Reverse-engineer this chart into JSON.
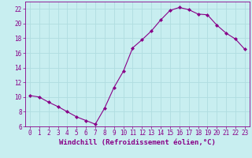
{
  "x": [
    0,
    1,
    2,
    3,
    4,
    5,
    6,
    7,
    8,
    9,
    10,
    11,
    12,
    13,
    14,
    15,
    16,
    17,
    18,
    19,
    20,
    21,
    22,
    23
  ],
  "y": [
    10.2,
    10.0,
    9.3,
    8.7,
    8.0,
    7.3,
    6.8,
    6.3,
    8.5,
    11.3,
    13.5,
    16.7,
    17.8,
    19.0,
    20.5,
    21.8,
    22.2,
    21.9,
    21.3,
    21.2,
    19.8,
    18.7,
    17.9,
    16.5
  ],
  "line_color": "#880088",
  "marker": "D",
  "marker_size": 2.0,
  "bg_color": "#c8eef0",
  "grid_color": "#b0dde0",
  "ylim": [
    6,
    23
  ],
  "xlim": [
    -0.5,
    23.5
  ],
  "yticks": [
    6,
    8,
    10,
    12,
    14,
    16,
    18,
    20,
    22
  ],
  "xticks": [
    0,
    1,
    2,
    3,
    4,
    5,
    6,
    7,
    8,
    9,
    10,
    11,
    12,
    13,
    14,
    15,
    16,
    17,
    18,
    19,
    20,
    21,
    22,
    23
  ],
  "xlabel": "Windchill (Refroidissement éolien,°C)",
  "xlabel_fontsize": 6.5,
  "tick_fontsize": 5.5,
  "tick_color": "#880088",
  "label_color": "#880088",
  "axis_color": "#880088",
  "linewidth": 0.8
}
